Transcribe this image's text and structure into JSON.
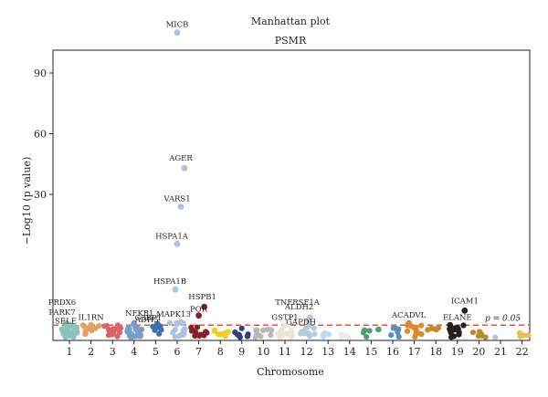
{
  "chart_data": {
    "type": "scatter",
    "title": "Manhattan plot",
    "subtitle": "PSMR",
    "xlabel": "Chromosome",
    "ylabel": "−Log10 (p value)",
    "categories": [
      "1",
      "2",
      "3",
      "4",
      "5",
      "6",
      "7",
      "8",
      "9",
      "10",
      "11",
      "12",
      "13",
      "14",
      "15",
      "16",
      "17",
      "18",
      "19",
      "20",
      "21",
      "22"
    ],
    "yticks": [
      30,
      60,
      90
    ],
    "threshold": {
      "label": "p = 0.05",
      "color": "#e8552b"
    },
    "chromosome_colors": {
      "1": "#8cc4bc",
      "2": "#e3a162",
      "3": "#d9636b",
      "4": "#7a9ec9",
      "5": "#3d6fad",
      "6": "#a8c4e1",
      "7": "#8b1e2b",
      "8": "#f2d021",
      "9": "#2e3f7e",
      "10": "#b7b7b7",
      "11": "#ece4d4",
      "12": "#b3cbe2",
      "13": "#c3d8ec",
      "14": "#e9eaeb",
      "15": "#4fa06d",
      "16": "#5c8ec4",
      "17": "#df8a2b",
      "18": "#c78a2e",
      "19": "#241f20",
      "20": "#bd8a2b",
      "21": "#c2c2c2",
      "22": "#e8c04a"
    },
    "labeled_points": [
      {
        "gene": "MICB",
        "chrom": 6,
        "y": 110
      },
      {
        "gene": "AGER",
        "chrom": 6,
        "y": 43
      },
      {
        "gene": "VARS1",
        "chrom": 6,
        "y": 27
      },
      {
        "gene": "HSPA1A",
        "chrom": 6,
        "y": 18
      },
      {
        "gene": "HSPA1B",
        "chrom": 6,
        "y": 7
      },
      {
        "gene": "HSPB1",
        "chrom": 7,
        "y": 3.2
      },
      {
        "gene": "POR",
        "chrom": 7,
        "y": 2.3
      },
      {
        "gene": "MAPK13",
        "chrom": 6,
        "y": 1.6
      },
      {
        "gene": "G3BP1",
        "chrom": 5,
        "y": 1.4
      },
      {
        "gene": "NFKB1",
        "chrom": 4,
        "y": 1.5
      },
      {
        "gene": "ADH5",
        "chrom": 4,
        "y": 1.4
      },
      {
        "gene": "IL1RN",
        "chrom": 2,
        "y": 1.3
      },
      {
        "gene": "PRDX6",
        "chrom": 1,
        "y": 1.5
      },
      {
        "gene": "PARK7",
        "chrom": 1,
        "y": 1.4
      },
      {
        "gene": "SELE",
        "chrom": 1,
        "y": 1.3
      },
      {
        "gene": "TNFRSF1A",
        "chrom": 12,
        "y": 2.1
      },
      {
        "gene": "ALDH2",
        "chrom": 12,
        "y": 1.8
      },
      {
        "gene": "GSTP1",
        "chrom": 11,
        "y": 1.3
      },
      {
        "gene": "GAPDH",
        "chrom": 12,
        "y": 1.2
      },
      {
        "gene": "ICAM1",
        "chrom": 19,
        "y": 2.8
      },
      {
        "gene": "ACADVL",
        "chrom": 17,
        "y": 1.5
      },
      {
        "gene": "ELANE",
        "chrom": 19,
        "y": 1.3
      }
    ],
    "background_points": [
      {
        "chrom": 1,
        "count": 34,
        "ymax": 1.3
      },
      {
        "chrom": 2,
        "count": 9,
        "ymax": 1.3
      },
      {
        "chrom": 3,
        "count": 14,
        "ymax": 1.3
      },
      {
        "chrom": 4,
        "count": 20,
        "ymax": 1.5
      },
      {
        "chrom": 5,
        "count": 6,
        "ymax": 1.3
      },
      {
        "chrom": 6,
        "count": 16,
        "ymax": 1.6
      },
      {
        "chrom": 7,
        "count": 12,
        "ymax": 1.2
      },
      {
        "chrom": 8,
        "count": 10,
        "ymax": 0.9
      },
      {
        "chrom": 9,
        "count": 9,
        "ymax": 1.1
      },
      {
        "chrom": 10,
        "count": 10,
        "ymax": 0.9
      },
      {
        "chrom": 11,
        "count": 10,
        "ymax": 0.9
      },
      {
        "chrom": 12,
        "count": 10,
        "ymax": 1.0
      },
      {
        "chrom": 13,
        "count": 4,
        "ymax": 0.5
      },
      {
        "chrom": 14,
        "count": 4,
        "ymax": 0.5
      },
      {
        "chrom": 15,
        "count": 6,
        "ymax": 0.9
      },
      {
        "chrom": 16,
        "count": 7,
        "ymax": 1.1
      },
      {
        "chrom": 17,
        "count": 14,
        "ymax": 1.4
      },
      {
        "chrom": 18,
        "count": 5,
        "ymax": 1.1
      },
      {
        "chrom": 19,
        "count": 12,
        "ymax": 1.3
      },
      {
        "chrom": 20,
        "count": 6,
        "ymax": 0.9
      },
      {
        "chrom": 21,
        "count": 1,
        "ymax": 0.2
      },
      {
        "chrom": 22,
        "count": 4,
        "ymax": 0.5
      }
    ]
  }
}
